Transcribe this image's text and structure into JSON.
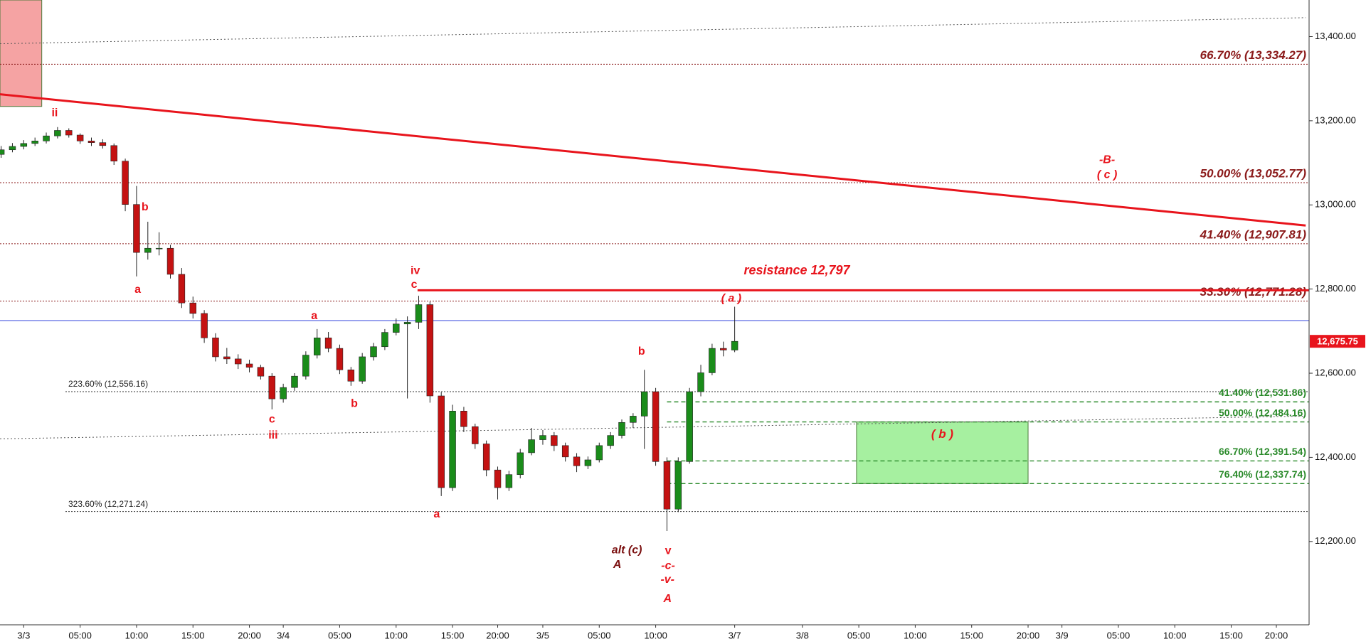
{
  "chart_data": {
    "type": "candlestick",
    "categories": [
      null,
      null,
      "3/3",
      null,
      null,
      null,
      null,
      "05:00",
      null,
      null,
      null,
      null,
      "10:00",
      null,
      null,
      null,
      null,
      "15:00",
      null,
      null,
      null,
      null,
      "20:00",
      null,
      null,
      "3/4",
      null,
      null,
      null,
      null,
      "05:00",
      null,
      null,
      null,
      null,
      "10:00",
      null,
      null,
      null,
      null,
      "15:00",
      null,
      null,
      null,
      "20:00",
      null,
      null,
      null,
      "3/5",
      null,
      null,
      null,
      null,
      "05:00",
      null,
      null,
      null,
      null,
      "10:00",
      null,
      null,
      null,
      null,
      null,
      null,
      "3/7",
      null,
      null,
      null,
      null,
      null,
      "3/8",
      null,
      null,
      null,
      null,
      "05:00",
      null,
      null,
      null,
      null,
      "10:00",
      null,
      null,
      null,
      null,
      "15:00",
      null,
      null,
      null,
      null,
      "20:00",
      null,
      null,
      "3/9",
      null,
      null,
      null,
      null,
      "05:00",
      null,
      null,
      null,
      null,
      "10:00",
      null,
      null,
      null,
      null,
      "15:00",
      null,
      null,
      null,
      "20:00",
      null,
      null
    ],
    "ohlc": [
      [
        13120,
        13140,
        13112,
        13131
      ],
      [
        13131,
        13147,
        13125,
        13139
      ],
      [
        13139,
        13154,
        13132,
        13146
      ],
      [
        13146,
        13160,
        13140,
        13152
      ],
      [
        13152,
        13172,
        13146,
        13164
      ],
      [
        13164,
        13185,
        13158,
        13177
      ],
      [
        13177,
        13182,
        13160,
        13166
      ],
      [
        13166,
        13170,
        13145,
        13152
      ],
      [
        13152,
        13160,
        13140,
        13148
      ],
      [
        13148,
        13156,
        13134,
        13141
      ],
      [
        13141,
        13146,
        13095,
        13104
      ],
      [
        13104,
        13110,
        12985,
        13001
      ],
      [
        13001,
        13045,
        12830,
        12887
      ],
      [
        12887,
        12960,
        12870,
        12897
      ],
      [
        12897,
        12935,
        12880,
        12897
      ],
      [
        12897,
        12905,
        12825,
        12835
      ],
      [
        12835,
        12850,
        12755,
        12767
      ],
      [
        12767,
        12782,
        12730,
        12742
      ],
      [
        12742,
        12750,
        12672,
        12684
      ],
      [
        12684,
        12695,
        12628,
        12639
      ],
      [
        12639,
        12660,
        12622,
        12634
      ],
      [
        12634,
        12645,
        12610,
        12622
      ],
      [
        12622,
        12632,
        12602,
        12614
      ],
      [
        12614,
        12620,
        12585,
        12593
      ],
      [
        12593,
        12600,
        12514,
        12539
      ],
      [
        12539,
        12575,
        12530,
        12566
      ],
      [
        12566,
        12600,
        12558,
        12593
      ],
      [
        12593,
        12652,
        12585,
        12643
      ],
      [
        12643,
        12705,
        12635,
        12684
      ],
      [
        12684,
        12698,
        12650,
        12659
      ],
      [
        12659,
        12668,
        12598,
        12608
      ],
      [
        12608,
        12615,
        12570,
        12581
      ],
      [
        12581,
        12648,
        12575,
        12639
      ],
      [
        12639,
        12672,
        12630,
        12663
      ],
      [
        12663,
        12705,
        12655,
        12697
      ],
      [
        12697,
        12730,
        12690,
        12717
      ],
      [
        12717,
        12735,
        12540,
        12721
      ],
      [
        12721,
        12784,
        12705,
        12763
      ],
      [
        12763,
        12770,
        12530,
        12546
      ],
      [
        12546,
        12555,
        12308,
        12328
      ],
      [
        12328,
        12525,
        12320,
        12510
      ],
      [
        12510,
        12520,
        12460,
        12473
      ],
      [
        12473,
        12480,
        12420,
        12432
      ],
      [
        12432,
        12440,
        12355,
        12370
      ],
      [
        12370,
        12378,
        12300,
        12328
      ],
      [
        12328,
        12368,
        12320,
        12359
      ],
      [
        12359,
        12420,
        12350,
        12411
      ],
      [
        12411,
        12470,
        12405,
        12442
      ],
      [
        12442,
        12465,
        12430,
        12452
      ],
      [
        12452,
        12460,
        12415,
        12428
      ],
      [
        12428,
        12435,
        12390,
        12401
      ],
      [
        12401,
        12410,
        12365,
        12380
      ],
      [
        12380,
        12402,
        12372,
        12394
      ],
      [
        12394,
        12435,
        12388,
        12428
      ],
      [
        12428,
        12460,
        12420,
        12452
      ],
      [
        12452,
        12490,
        12445,
        12483
      ],
      [
        12483,
        12505,
        12470,
        12498
      ],
      [
        12498,
        12608,
        12420,
        12556
      ],
      [
        12556,
        12565,
        12380,
        12390
      ],
      [
        12390,
        12400,
        12225,
        12277
      ],
      [
        12277,
        12400,
        12270,
        12390
      ],
      [
        12390,
        12565,
        12385,
        12556
      ],
      [
        12556,
        12620,
        12545,
        12601
      ],
      [
        12601,
        12670,
        12595,
        12659
      ],
      [
        12659,
        12675,
        12640,
        12655
      ],
      [
        12655,
        12758,
        12650,
        12675.75
      ],
      null,
      null,
      null,
      null,
      null,
      null,
      null,
      null,
      null,
      null,
      null,
      null,
      null,
      null,
      null,
      null,
      null,
      null,
      null,
      null,
      null,
      null,
      null,
      null,
      null,
      null,
      null,
      null,
      null,
      null,
      null,
      null,
      null,
      null,
      null,
      null,
      null,
      null,
      null,
      null,
      null,
      null,
      null,
      null,
      null,
      null,
      null,
      null,
      null,
      null
    ],
    "up_color": "#1a8c1a",
    "down_color": "#c41212",
    "ylim": [
      12002,
      13487
    ],
    "yticks": [
      {
        "value": 12200,
        "label": "12,200.00"
      },
      {
        "value": 12400,
        "label": "12,400.00"
      },
      {
        "value": 12600,
        "label": "12,600.00"
      },
      {
        "value": 12800,
        "label": "12,800.00"
      },
      {
        "value": 13000,
        "label": "13,000.00"
      },
      {
        "value": 13200,
        "label": "13,200.00"
      },
      {
        "value": 13400,
        "label": "13,400.00"
      }
    ],
    "zones": [
      {
        "x": [
          -0.1,
          3.6
        ],
        "y": [
          13234,
          13487
        ],
        "color": "#f5a3a3"
      },
      {
        "x": [
          75.8,
          91
        ],
        "y": [
          12337.74,
          12484.16
        ],
        "color": "#a6f0a0",
        "label": "( b )"
      }
    ],
    "trendlines": [
      {
        "x": [
          -0.1,
          115.6
        ],
        "y": [
          13383,
          13445
        ],
        "color": "#555555",
        "style": "dotted"
      },
      {
        "x": [
          -0.1,
          115.6
        ],
        "y": [
          13263,
          12951
        ],
        "color": "#e8141c",
        "style": "thick"
      },
      {
        "x": [
          -0.1,
          115.6
        ],
        "y": [
          12444,
          12498
        ],
        "color": "#555555",
        "style": "dotted"
      }
    ],
    "fib_levels": {
      "color": "#8b1a1a",
      "levels": [
        {
          "value": 13334.27,
          "label": "66.70% (13,334.27)"
        },
        {
          "value": 13052.77,
          "label": "50.00% (13,052.77)"
        },
        {
          "value": 12907.81,
          "label": "41.40% (12,907.81)"
        },
        {
          "value": 12771.28,
          "label": "33.30% (12,771.28)"
        }
      ]
    },
    "extension_levels": {
      "color": "#333333",
      "start": 5.7,
      "levels": [
        {
          "value": 12556.16,
          "label": "223.60% (12,556.16)"
        },
        {
          "value": 12271.24,
          "label": "323.60% (12,271.24)"
        }
      ]
    },
    "retracement_levels": {
      "color": "#2a8a2a",
      "start": 59,
      "levels": [
        {
          "value": 12531.86,
          "label": "41.40% (12,531.86)"
        },
        {
          "value": 12484.16,
          "label": "50.00% (12,484.16)"
        },
        {
          "value": 12391.54,
          "label": "66.70% (12,391.54)"
        },
        {
          "value": 12337.74,
          "label": "76.40% (12,337.74)"
        }
      ]
    },
    "resistance": {
      "value": 12797,
      "label": "resistance 12,797",
      "start": 36.9,
      "color": "#e8141c"
    },
    "price_line": {
      "value": 12725,
      "color": "#3344dd"
    },
    "last_price": {
      "value": 12675.75,
      "label": "12,675.75",
      "color": "#e8141c"
    },
    "annotations": [
      {
        "text": "ii",
        "x": 4.75,
        "y": 13218,
        "color": "#e8141c"
      },
      {
        "text": "b",
        "x": 12.75,
        "y": 12994,
        "color": "#e8141c"
      },
      {
        "text": "a",
        "x": 12.1,
        "y": 12798,
        "color": "#e8141c"
      },
      {
        "text": "c",
        "x": 24,
        "y": 12490,
        "color": "#e8141c"
      },
      {
        "text": "iii",
        "x": 24.1,
        "y": 12452,
        "color": "#e8141c"
      },
      {
        "text": "a",
        "x": 27.75,
        "y": 12736,
        "color": "#e8141c"
      },
      {
        "text": "b",
        "x": 31.3,
        "y": 12527,
        "color": "#e8141c"
      },
      {
        "text": "iv",
        "x": 36.7,
        "y": 12843,
        "color": "#e8141c"
      },
      {
        "text": "c",
        "x": 36.6,
        "y": 12810,
        "color": "#e8141c"
      },
      {
        "text": "a",
        "x": 38.6,
        "y": 12264,
        "color": "#e8141c"
      },
      {
        "text": "b",
        "x": 56.75,
        "y": 12651,
        "color": "#e8141c"
      },
      {
        "text": "v",
        "x": 59.1,
        "y": 12177,
        "color": "#e8141c"
      },
      {
        "text": "-c-",
        "x": 59.1,
        "y": 12142,
        "color": "#e8141c",
        "italic": true
      },
      {
        "text": "-v-",
        "x": 59.05,
        "y": 12109,
        "color": "#e8141c",
        "italic": true
      },
      {
        "text": "A",
        "x": 59.05,
        "y": 12063,
        "color": "#e8141c",
        "italic": true
      },
      {
        "text": "alt (c)",
        "x": 55.45,
        "y": 12179,
        "color": "#7b1010",
        "italic": true
      },
      {
        "text": "A",
        "x": 54.6,
        "y": 12144,
        "color": "#7b1010",
        "italic": true
      },
      {
        "text": "( a )",
        "x": 64.7,
        "y": 12777,
        "color": "#e8141c",
        "italic": true
      },
      {
        "text": "-B-",
        "x": 98,
        "y": 13106,
        "color": "#e8141c",
        "italic": true
      },
      {
        "text": "( c )",
        "x": 98,
        "y": 13071,
        "color": "#e8141c",
        "italic": true
      }
    ]
  }
}
